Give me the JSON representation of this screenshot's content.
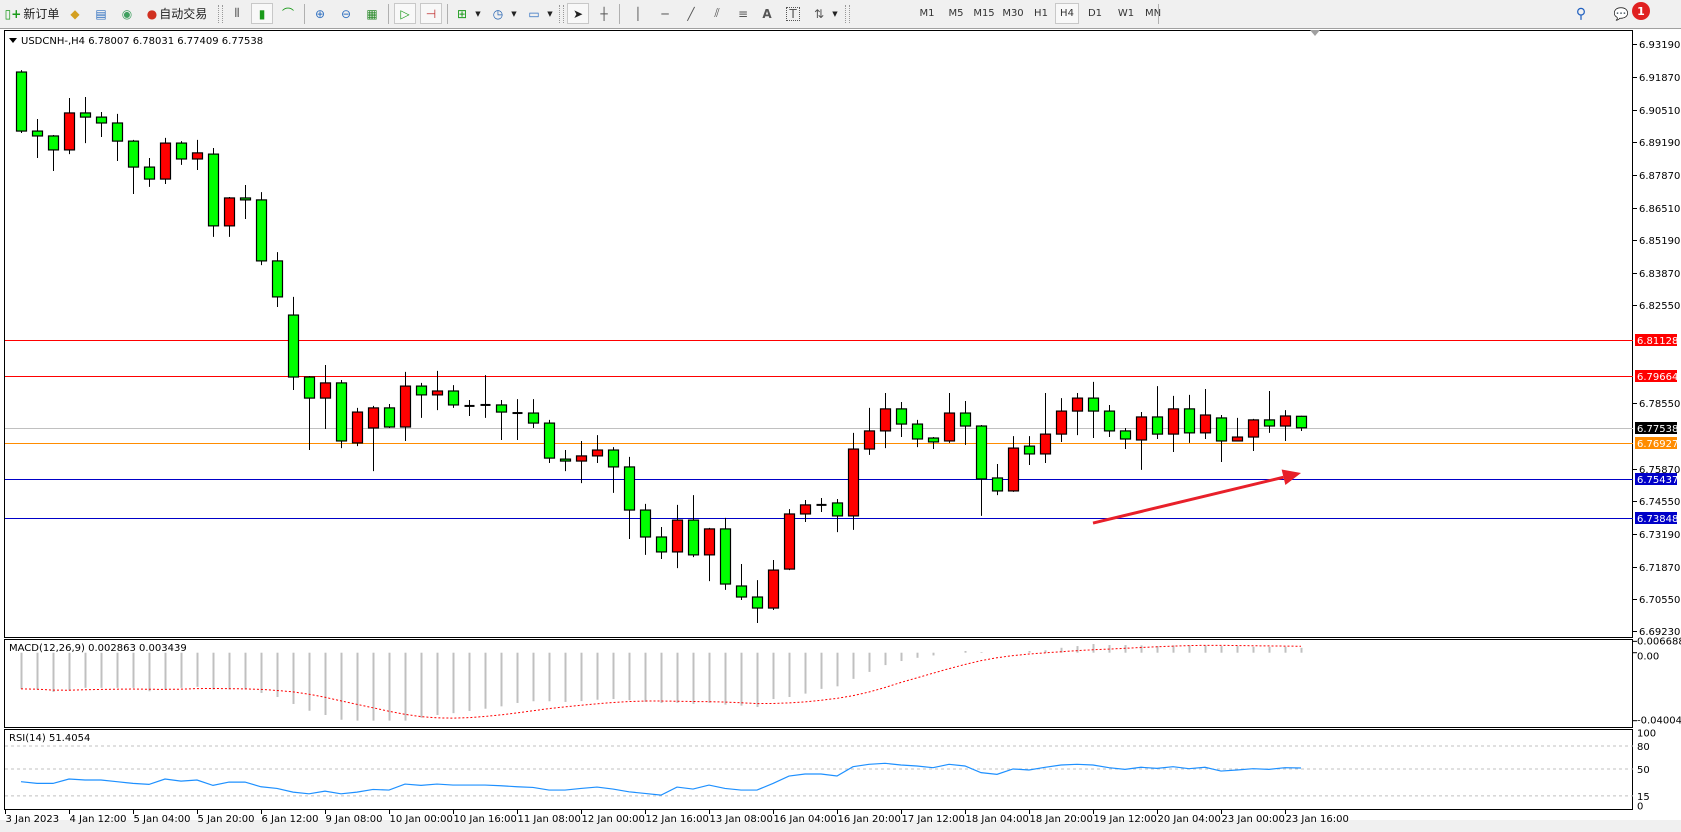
{
  "toolbar": {
    "new_order_label": "新订单",
    "auto_trading_label": "自动交易",
    "timeframes": [
      "M1",
      "M5",
      "M15",
      "M30",
      "H1",
      "H4",
      "D1",
      "W1",
      "MN"
    ],
    "active_timeframe": "H4",
    "notification_count": "1"
  },
  "chart": {
    "header": "USDCNH-,H4  6.78007 6.78031 6.77409 6.77538",
    "symbol": "USDCNH-",
    "timeframe": "H4",
    "colors": {
      "bull": "#ff0000",
      "bear": "#00ff00",
      "outline": "#000000"
    },
    "price_ticks": [
      "6.93190",
      "6.91870",
      "6.90510",
      "6.89190",
      "6.87870",
      "6.86510",
      "6.85190",
      "6.83870",
      "6.82550",
      "6.78550",
      "6.75870",
      "6.74550",
      "6.73190",
      "6.71870",
      "6.70550",
      "6.69230"
    ],
    "time_labels": [
      "3 Jan 2023",
      "4 Jan 12:00",
      "5 Jan 04:00",
      "5 Jan 20:00",
      "6 Jan 12:00",
      "9 Jan 08:00",
      "10 Jan 00:00",
      "10 Jan 16:00",
      "11 Jan 08:00",
      "12 Jan 00:00",
      "12 Jan 16:00",
      "13 Jan 08:00",
      "16 Jan 04:00",
      "16 Jan 20:00",
      "17 Jan 12:00",
      "18 Jan 04:00",
      "18 Jan 20:00",
      "19 Jan 12:00",
      "20 Jan 04:00",
      "23 Jan 00:00",
      "23 Jan 16:00"
    ],
    "hlines": [
      {
        "price": 6.81128,
        "label": "6.81128",
        "color": "#ff0000"
      },
      {
        "price": 6.79664,
        "label": "6.79664",
        "color": "#ff0000"
      },
      {
        "price": 6.77538,
        "label": "6.77538",
        "color": "#c0c0c0",
        "label_bg": "#000000"
      },
      {
        "price": 6.76927,
        "label": "6.76927",
        "color": "#ff8c00"
      },
      {
        "price": 6.75437,
        "label": "6.75437",
        "color": "#0000c8"
      },
      {
        "price": 6.73848,
        "label": "6.73848",
        "color": "#0000c8"
      }
    ],
    "arrow": {
      "color": "#e8202a",
      "from_price": 6.7365,
      "to_price": 6.7569,
      "from_bar": 68,
      "to_bar": 81
    },
    "ohlc": [
      [
        6.9206,
        6.9214,
        6.8957,
        6.8965
      ],
      [
        6.8965,
        6.9014,
        6.8855,
        6.8945
      ],
      [
        6.8945,
        6.8949,
        6.8802,
        6.8888
      ],
      [
        6.8888,
        6.91,
        6.8871,
        6.9039
      ],
      [
        6.9039,
        6.9104,
        6.8916,
        6.9022
      ],
      [
        6.9022,
        6.9043,
        6.8941,
        6.8998
      ],
      [
        6.8998,
        6.9035,
        6.8843,
        6.8924
      ],
      [
        6.8924,
        6.8929,
        6.8708,
        6.8818
      ],
      [
        6.8818,
        6.8855,
        6.8737,
        6.8769
      ],
      [
        6.8769,
        6.8937,
        6.8749,
        6.8916
      ],
      [
        6.8916,
        6.8924,
        6.8827,
        6.8851
      ],
      [
        6.8851,
        6.8929,
        6.8806,
        6.8876
      ],
      [
        6.8871,
        6.8896,
        6.8533,
        6.8578
      ],
      [
        6.8578,
        6.8696,
        6.8533,
        6.8692
      ],
      [
        6.8692,
        6.8745,
        6.8606,
        6.8684
      ],
      [
        6.8684,
        6.8716,
        6.8418,
        6.8435
      ],
      [
        6.8435,
        6.8471,
        6.8247,
        6.8288
      ],
      [
        6.8214,
        6.8288,
        6.7908,
        6.7961
      ],
      [
        6.7961,
        6.7965,
        6.7663,
        6.7875
      ],
      [
        6.7875,
        6.801,
        6.7749,
        6.7937
      ],
      [
        6.7937,
        6.7949,
        6.7671,
        6.77
      ],
      [
        6.7692,
        6.7835,
        6.7679,
        6.7818
      ],
      [
        6.7753,
        6.7843,
        6.7577,
        6.7835
      ],
      [
        6.7835,
        6.7851,
        6.7753,
        6.7757
      ],
      [
        6.7757,
        6.7982,
        6.77,
        6.7924
      ],
      [
        6.7924,
        6.7937,
        6.7794,
        6.7888
      ],
      [
        6.7888,
        6.7986,
        6.7826,
        6.7904
      ],
      [
        6.7904,
        6.7928,
        6.7835,
        6.7847
      ],
      [
        6.7843,
        6.7867,
        6.7802,
        6.7843
      ],
      [
        6.7847,
        6.7969,
        6.7794,
        6.7847
      ],
      [
        6.7847,
        6.7867,
        6.7704,
        6.7818
      ],
      [
        6.7814,
        6.7871,
        6.7704,
        6.7814
      ],
      [
        6.7814,
        6.7871,
        6.7753,
        6.7773
      ],
      [
        6.7773,
        6.7786,
        6.761,
        6.763
      ],
      [
        6.7626,
        6.7663,
        6.7577,
        6.7618
      ],
      [
        6.7618,
        6.77,
        6.7528,
        6.7639
      ],
      [
        6.7639,
        6.7724,
        6.761,
        6.7663
      ],
      [
        6.7663,
        6.7675,
        6.7488,
        6.7594
      ],
      [
        6.7594,
        6.7635,
        6.73,
        6.7418
      ],
      [
        6.7418,
        6.7443,
        6.7235,
        6.7308
      ],
      [
        6.7308,
        6.7349,
        6.7218,
        6.7247
      ],
      [
        6.7247,
        6.7439,
        6.7181,
        6.7377
      ],
      [
        6.7377,
        6.7479,
        6.7226,
        6.7235
      ],
      [
        6.7235,
        6.7345,
        6.7128,
        6.7341
      ],
      [
        6.7341,
        6.7386,
        6.7092,
        6.7116
      ],
      [
        6.7108,
        6.7198,
        6.7051,
        6.7063
      ],
      [
        6.7063,
        6.7132,
        6.6957,
        6.7018
      ],
      [
        6.7018,
        6.7214,
        6.701,
        6.7173
      ],
      [
        6.7177,
        6.7422,
        6.7173,
        6.7402
      ],
      [
        6.7402,
        6.7459,
        6.7369,
        6.7439
      ],
      [
        6.7439,
        6.7467,
        6.741,
        6.7439
      ],
      [
        6.7447,
        6.7463,
        6.7328,
        6.7394
      ],
      [
        6.7394,
        6.7733,
        6.7337,
        6.7667
      ],
      [
        6.7667,
        6.7835,
        6.7643,
        6.7741
      ],
      [
        6.7741,
        6.7896,
        6.7671,
        6.7831
      ],
      [
        6.7831,
        6.7859,
        6.7716,
        6.7769
      ],
      [
        6.7769,
        6.7786,
        6.7675,
        6.7708
      ],
      [
        6.7712,
        6.7716,
        6.7667,
        6.7696
      ],
      [
        6.77,
        6.7896,
        6.7692,
        6.7814
      ],
      [
        6.7814,
        6.7863,
        6.7684,
        6.7761
      ],
      [
        6.7761,
        6.7765,
        6.7394,
        6.7545
      ],
      [
        6.7549,
        6.7606,
        6.7479,
        6.7496
      ],
      [
        6.7496,
        6.772,
        6.7492,
        6.7671
      ],
      [
        6.7679,
        6.772,
        6.7602,
        6.7647
      ],
      [
        6.7647,
        6.7896,
        6.761,
        6.7728
      ],
      [
        6.7728,
        6.7875,
        6.7696,
        6.7822
      ],
      [
        6.7822,
        6.7896,
        6.7724,
        6.7875
      ],
      [
        6.7875,
        6.7941,
        6.7712,
        6.7822
      ],
      [
        6.7822,
        6.7847,
        6.7716,
        6.7741
      ],
      [
        6.7741,
        6.7753,
        6.7667,
        6.7708
      ],
      [
        6.7704,
        6.7818,
        6.7582,
        6.7798
      ],
      [
        6.7798,
        6.7924,
        6.7708,
        6.7728
      ],
      [
        6.7728,
        6.7884,
        6.7655,
        6.7831
      ],
      [
        6.7831,
        6.7888,
        6.7692,
        6.7733
      ],
      [
        6.7733,
        6.7912,
        6.7708,
        6.7806
      ],
      [
        6.7794,
        6.7806,
        6.7614,
        6.77
      ],
      [
        6.77,
        6.7794,
        6.77,
        6.7716
      ],
      [
        6.7716,
        6.779,
        6.7659,
        6.7786
      ],
      [
        6.7786,
        6.7904,
        6.7733,
        6.7761
      ],
      [
        6.7761,
        6.7826,
        6.77,
        6.7802
      ],
      [
        6.78007,
        6.78031,
        6.77409,
        6.77538
      ]
    ]
  },
  "macd": {
    "label": "MACD(12,26,9) 0.002863 0.003439",
    "ticks": [
      "0.006688",
      "0.00",
      "-0.040045"
    ],
    "range": [
      -0.040045,
      0.006688
    ],
    "hist_color": "#c0c0c0",
    "signal_color": "#ff0000",
    "values": [
      -0.0213,
      -0.0217,
      -0.0231,
      -0.0223,
      -0.0207,
      -0.0207,
      -0.0207,
      -0.0207,
      -0.0227,
      -0.0217,
      -0.0207,
      -0.0201,
      -0.0217,
      -0.0217,
      -0.0217,
      -0.0237,
      -0.0261,
      -0.0302,
      -0.0342,
      -0.0367,
      -0.0395,
      -0.04,
      -0.04,
      -0.04,
      -0.04,
      -0.0383,
      -0.0367,
      -0.0356,
      -0.0343,
      -0.033,
      -0.0316,
      -0.0296,
      -0.0286,
      -0.0286,
      -0.029,
      -0.0285,
      -0.0277,
      -0.0273,
      -0.028,
      -0.029,
      -0.0296,
      -0.0296,
      -0.0302,
      -0.0296,
      -0.0306,
      -0.0312,
      -0.032,
      -0.0273,
      -0.0261,
      -0.0241,
      -0.0213,
      -0.0198,
      -0.0154,
      -0.0113,
      -0.0073,
      -0.0049,
      -0.003,
      -0.0016,
      0.0,
      0.001,
      0.0004,
      0.0,
      0.0,
      0.001,
      0.0014,
      0.0029,
      0.0039,
      0.0051,
      0.0045,
      0.0045,
      0.0043,
      0.0039,
      0.0043,
      0.0043,
      0.0043,
      0.0039,
      0.0039,
      0.0035,
      0.0035,
      0.0035,
      0.002863
    ]
  },
  "rsi": {
    "label": "RSI(14) 51.4054",
    "ticks": [
      "100",
      "80",
      "50",
      "15",
      "0"
    ],
    "levels": [
      80,
      50,
      15
    ],
    "line_color": "#1e90ff",
    "values": [
      33.5,
      31.3,
      31.3,
      37.0,
      35.7,
      35.7,
      33.5,
      31.3,
      30.0,
      37.0,
      34.3,
      35.7,
      28.7,
      33.0,
      33.0,
      26.9,
      24.7,
      19.9,
      17.7,
      21.2,
      17.7,
      19.9,
      23.4,
      22.6,
      30.4,
      28.7,
      30.4,
      29.1,
      29.1,
      29.1,
      28.2,
      26.9,
      26.0,
      22.6,
      22.6,
      24.7,
      26.5,
      23.9,
      20.3,
      18.2,
      16.0,
      26.5,
      23.9,
      29.1,
      24.7,
      22.6,
      22.6,
      31.3,
      40.9,
      43.5,
      43.5,
      40.9,
      53.1,
      56.2,
      57.5,
      55.3,
      54.0,
      51.8,
      56.2,
      54.0,
      45.3,
      43.1,
      50.1,
      48.8,
      52.3,
      55.3,
      56.2,
      55.3,
      51.8,
      49.6,
      52.3,
      50.9,
      53.1,
      50.5,
      52.3,
      47.4,
      48.8,
      50.5,
      49.6,
      51.8,
      51.4054
    ]
  }
}
